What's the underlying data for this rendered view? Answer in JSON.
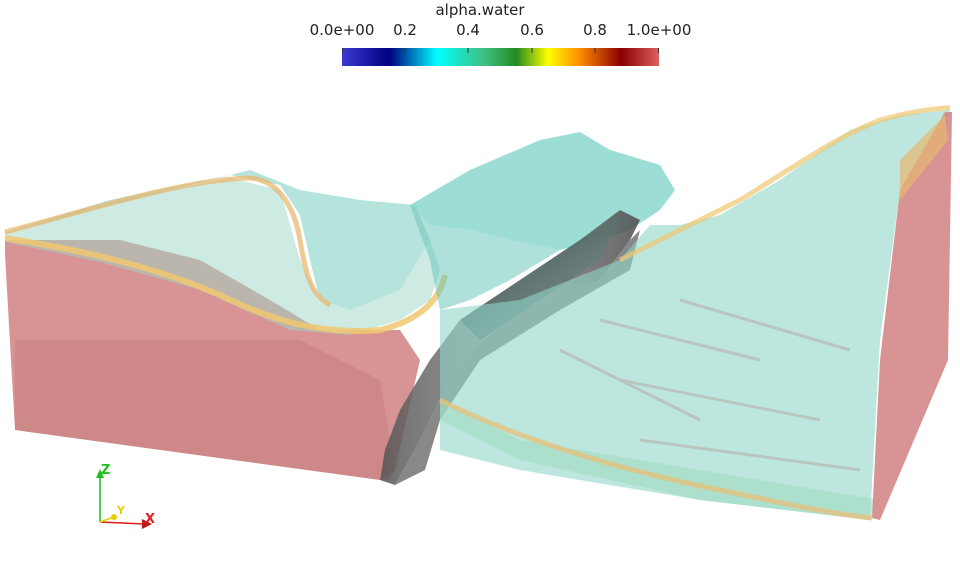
{
  "colorbar": {
    "title": "alpha.water",
    "ticks": [
      "0.0e+00",
      "0.2",
      "0.4",
      "0.6",
      "0.8",
      "1.0e+00"
    ],
    "range": [
      0.0,
      1.0
    ],
    "colormap": [
      "#3b3bd1",
      "#000080",
      "#00ffff",
      "#228b22",
      "#ffff00",
      "#ff8c00",
      "#8b0000",
      "#dc5f5f"
    ]
  },
  "orientation_axes": {
    "x_label": "X",
    "y_label": "Y",
    "z_label": "Z",
    "x_color": "#e02020",
    "y_color": "#e6d000",
    "z_color": "#20c020"
  },
  "scene": {
    "water_color": "#d98c8c",
    "air_color": "#7fd6c8",
    "interface_color": "#f0c870",
    "structure_color": "#6b6b6b"
  }
}
